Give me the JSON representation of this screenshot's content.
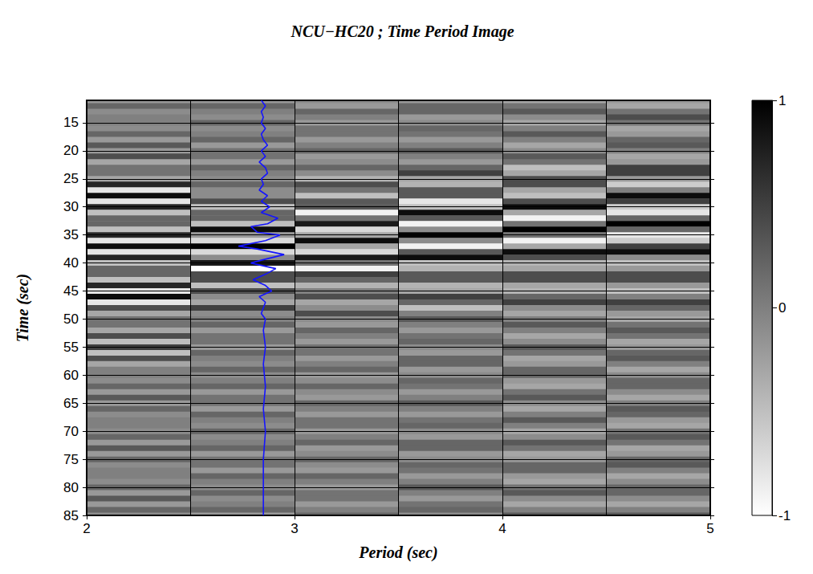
{
  "chart_data": {
    "type": "heatmap",
    "title": "NCU−HC20 ; Time Period Image",
    "xlabel": "Period (sec)",
    "ylabel": "Time (sec)",
    "xlim": [
      2,
      5
    ],
    "xticks": [
      2,
      3,
      4,
      5
    ],
    "ylim": [
      11,
      85
    ],
    "yticks": [
      15,
      20,
      25,
      30,
      35,
      40,
      45,
      50,
      55,
      60,
      65,
      70,
      75,
      80,
      85
    ],
    "grid": true,
    "tick_labels": true,
    "cells": {
      "x_bins": [
        2,
        2.5,
        3,
        3.5,
        4,
        4.5,
        5
      ],
      "y": [
        11,
        12,
        13,
        14,
        15,
        16,
        17,
        18,
        19,
        20,
        21,
        22,
        23,
        24,
        25,
        26,
        27,
        28,
        29,
        30,
        31,
        32,
        33,
        34,
        35,
        36,
        37,
        38,
        39,
        40,
        41,
        42,
        43,
        44,
        45,
        46,
        47,
        48,
        49,
        50,
        51,
        52,
        53,
        54,
        55,
        56,
        57,
        58,
        59,
        60,
        61,
        62,
        63,
        64,
        65,
        66,
        67,
        68,
        69,
        70,
        71,
        72,
        73,
        74,
        75,
        76,
        77,
        78,
        79,
        80,
        81,
        82,
        83,
        84,
        85
      ],
      "values": [
        [
          -0.2,
          -0.2,
          -0.1,
          -0.2,
          -0.3,
          -0.2
        ],
        [
          0.2,
          0.2,
          -0.2,
          0.2,
          0.1,
          -0.3
        ],
        [
          -0.1,
          0.0,
          0.2,
          0.2,
          0.3,
          0.1
        ],
        [
          0.0,
          -0.1,
          0.0,
          -0.2,
          -0.1,
          0.4
        ],
        [
          0.0,
          0.2,
          -0.2,
          -0.1,
          -0.3,
          0.1
        ],
        [
          -0.1,
          -0.1,
          0.1,
          0.2,
          0.0,
          -0.3
        ],
        [
          0.2,
          0.0,
          0.1,
          0.1,
          0.3,
          -0.2
        ],
        [
          -0.2,
          0.2,
          -0.2,
          -0.2,
          0.0,
          0.2
        ],
        [
          0.3,
          -0.2,
          0.0,
          0.0,
          -0.3,
          0.3
        ],
        [
          -0.2,
          0.1,
          0.2,
          0.3,
          -0.1,
          0.0
        ],
        [
          0.4,
          0.1,
          -0.2,
          0.0,
          0.3,
          -0.3
        ],
        [
          -0.3,
          -0.2,
          -0.1,
          -0.2,
          0.1,
          -0.2
        ],
        [
          0.1,
          0.2,
          0.2,
          0.2,
          -0.5,
          0.5
        ],
        [
          0.1,
          0.0,
          -0.1,
          0.5,
          -0.3,
          0.5
        ],
        [
          -0.3,
          -0.1,
          -0.4,
          -0.3,
          0.4,
          -0.2
        ],
        [
          0.7,
          0.2,
          0.4,
          -0.4,
          0.4,
          -0.6
        ],
        [
          -0.8,
          -0.1,
          0.1,
          0.3,
          -0.3,
          0.0
        ],
        [
          0.9,
          -0.1,
          -0.5,
          0.3,
          -0.5,
          0.9
        ],
        [
          -0.8,
          0.4,
          0.3,
          -0.8,
          0.4,
          0.5
        ],
        [
          0.7,
          -0.5,
          0.3,
          -0.5,
          0.9,
          -0.6
        ],
        [
          -0.5,
          0.2,
          -0.9,
          0.9,
          -0.3,
          -0.8
        ],
        [
          0.2,
          0.2,
          0.1,
          0.3,
          -0.9,
          0.2
        ],
        [
          0.2,
          -0.5,
          0.8,
          -0.9,
          0.1,
          1.0
        ],
        [
          -0.5,
          0.9,
          -0.7,
          -0.1,
          1.0,
          0.2
        ],
        [
          0.7,
          -0.2,
          -0.3,
          1.0,
          0.1,
          -0.8
        ],
        [
          -0.8,
          -0.7,
          0.9,
          -0.1,
          -0.9,
          -0.6
        ],
        [
          0.9,
          1.0,
          -0.3,
          -0.9,
          -0.3,
          0.5
        ],
        [
          -0.8,
          -0.7,
          -0.7,
          0.3,
          0.9,
          0.9
        ],
        [
          0.7,
          -0.1,
          0.8,
          0.9,
          0.4,
          -0.1
        ],
        [
          -0.5,
          0.8,
          0.1,
          -0.5,
          -0.4,
          -0.5
        ],
        [
          0.2,
          -1.0,
          -0.9,
          -0.4,
          -0.3,
          -0.2
        ],
        [
          0.2,
          0.4,
          0.5,
          0.3,
          0.4,
          0.4
        ],
        [
          -0.5,
          0.4,
          0.2,
          0.3,
          0.4,
          0.4
        ],
        [
          0.7,
          -0.5,
          -0.4,
          -0.4,
          -0.3,
          -0.2
        ],
        [
          -0.8,
          0.4,
          0.0,
          -0.3,
          -0.4,
          -0.5
        ],
        [
          0.9,
          -0.1,
          0.4,
          0.5,
          0.2,
          0.0
        ],
        [
          -0.8,
          -0.3,
          -0.3,
          0.2,
          0.5,
          0.5
        ],
        [
          0.4,
          0.5,
          -0.1,
          -0.5,
          -0.1,
          0.2
        ],
        [
          -0.3,
          -0.1,
          0.4,
          0.0,
          -0.3,
          -0.2
        ],
        [
          0.1,
          0.0,
          -0.1,
          0.3,
          0.0,
          -0.3
        ],
        [
          0.1,
          0.2,
          -0.2,
          0.0,
          0.3,
          0.1
        ],
        [
          -0.3,
          -0.2,
          0.2,
          -0.2,
          0.0,
          0.3
        ],
        [
          0.4,
          0.1,
          0.0,
          0.1,
          -0.3,
          0.1
        ],
        [
          -0.5,
          0.1,
          -0.2,
          0.2,
          -0.1,
          -0.3
        ],
        [
          0.5,
          -0.2,
          0.1,
          -0.1,
          0.3,
          -0.2
        ],
        [
          -0.5,
          0.2,
          0.1,
          -0.2,
          0.1,
          0.2
        ],
        [
          0.4,
          0.0,
          -0.2,
          0.2,
          -0.3,
          0.3
        ],
        [
          -0.3,
          -0.1,
          0.0,
          0.2,
          -0.2,
          0.0
        ],
        [
          0.0,
          0.2,
          0.2,
          -0.2,
          0.2,
          -0.3
        ],
        [
          0.0,
          -0.1,
          -0.2,
          -0.1,
          0.2,
          -0.1
        ],
        [
          -0.1,
          0.0,
          -0.1,
          0.2,
          -0.2,
          0.2
        ],
        [
          0.2,
          0.2,
          0.2,
          0.1,
          -0.3,
          0.2
        ],
        [
          -0.2,
          -0.2,
          -0.1,
          -0.2,
          0.1,
          -0.1
        ],
        [
          0.3,
          0.1,
          -0.2,
          0.0,
          0.3,
          -0.3
        ],
        [
          -0.2,
          0.1,
          0.2,
          0.3,
          -0.1,
          0.0
        ],
        [
          0.2,
          -0.2,
          0.0,
          0.0,
          -0.3,
          0.3
        ],
        [
          -0.1,
          0.2,
          -0.2,
          -0.2,
          0.0,
          0.2
        ],
        [
          0.0,
          0.0,
          0.1,
          0.1,
          0.3,
          -0.2
        ],
        [
          0.0,
          -0.1,
          0.1,
          0.2,
          0.0,
          -0.3
        ],
        [
          -0.1,
          0.2,
          -0.2,
          -0.1,
          -0.3,
          0.1
        ],
        [
          0.2,
          -0.1,
          0.0,
          -0.2,
          -0.1,
          0.3
        ],
        [
          -0.2,
          0.0,
          0.2,
          0.2,
          0.3,
          0.1
        ],
        [
          0.3,
          0.2,
          -0.2,
          0.2,
          0.1,
          -0.3
        ],
        [
          -0.2,
          -0.2,
          -0.1,
          -0.2,
          -0.3,
          -0.2
        ],
        [
          0.2,
          0.1,
          0.2,
          -0.1,
          -0.2,
          0.2
        ],
        [
          -0.1,
          0.1,
          -0.1,
          0.2,
          0.2,
          0.3
        ],
        [
          0.0,
          -0.2,
          -0.2,
          0.1,
          0.2,
          0.0
        ],
        [
          0.0,
          0.2,
          0.2,
          -0.2,
          -0.2,
          -0.3
        ],
        [
          -0.1,
          0.0,
          0.0,
          0.0,
          -0.3,
          -0.1
        ],
        [
          0.2,
          -0.1,
          -0.2,
          0.3,
          0.1,
          0.2
        ],
        [
          -0.2,
          0.2,
          0.1,
          0.0,
          0.3,
          0.2
        ],
        [
          0.3,
          -0.1,
          0.1,
          -0.2,
          -0.1,
          -0.1
        ],
        [
          -0.2,
          0.0,
          -0.2,
          0.1,
          -0.3,
          -0.3
        ],
        [
          0.2,
          0.2,
          0.0,
          0.2,
          0.0,
          0.0
        ],
        [
          -0.1,
          -0.2,
          0.2,
          -0.1,
          0.3,
          0.3
        ]
      ]
    },
    "colorbar": {
      "range": [
        -1,
        1
      ],
      "ticks": [
        -1,
        0,
        1
      ]
    },
    "series": [
      {
        "type": "line",
        "color": "#1414ff",
        "x": [
          2.84,
          2.86,
          2.84,
          2.85,
          2.84,
          2.86,
          2.84,
          2.85,
          2.87,
          2.84,
          2.86,
          2.83,
          2.86,
          2.87,
          2.84,
          2.85,
          2.83,
          2.87,
          2.84,
          2.88,
          2.84,
          2.92,
          2.87,
          2.79,
          2.82,
          2.93,
          2.86,
          2.73,
          2.82,
          2.95,
          2.84,
          2.79,
          2.91,
          2.86,
          2.8,
          2.86,
          2.89,
          2.83,
          2.86,
          2.85,
          2.84,
          2.86,
          2.85,
          2.86,
          2.85,
          2.86,
          2.85,
          2.86,
          2.85,
          2.85,
          2.85
        ],
        "y": [
          11,
          12,
          13,
          14,
          15,
          16,
          17,
          18,
          19,
          20,
          21,
          22,
          23,
          24,
          25,
          26,
          27,
          28,
          29,
          30,
          31,
          32,
          33,
          33.5,
          34.5,
          35,
          36,
          37,
          37.5,
          38.5,
          39.5,
          40,
          41,
          42,
          43,
          44,
          45,
          46,
          47,
          48,
          49,
          50,
          52,
          55,
          58,
          62,
          66,
          70,
          75,
          80,
          85
        ]
      }
    ]
  }
}
